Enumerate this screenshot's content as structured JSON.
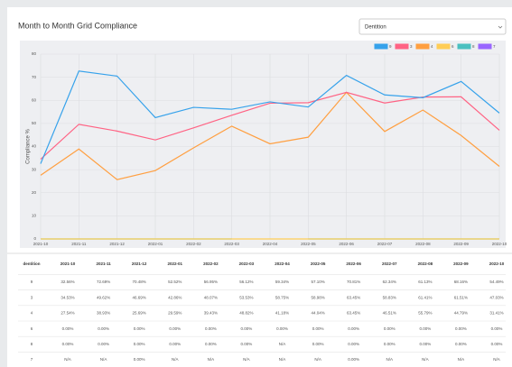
{
  "header": {
    "title": "Month to Month Grid Compliance",
    "dropdown_value": "Dentition"
  },
  "chart_data": {
    "type": "line",
    "y_label": "Compliance %",
    "categories": [
      "2021-10",
      "2021-11",
      "2021-12",
      "2022-01",
      "2022-02",
      "2022-03",
      "2022-04",
      "2022-05",
      "2022-06",
      "2022-07",
      "2022-08",
      "2022-09",
      "2022-10"
    ],
    "ylim": [
      0,
      80
    ],
    "yticks": [
      0,
      10,
      20,
      30,
      40,
      50,
      60,
      70,
      80
    ],
    "grid": true,
    "legend": "top-right",
    "series": [
      {
        "name": "9",
        "color": "#36a2eb",
        "values": [
          32.56,
          72.69,
          70.48,
          52.52,
          56.95,
          56.12,
          59.34,
          57.1,
          70.81,
          62.34,
          61.13,
          68.16,
          54.49
        ]
      },
      {
        "name": "3",
        "color": "#ff6384",
        "values": [
          34.53,
          49.62,
          46.69,
          42.86,
          48.07,
          53.53,
          58.75,
          58.98,
          63.45,
          58.83,
          61.41,
          61.51,
          47.03
        ]
      },
      {
        "name": "4",
        "color": "#ff9f40",
        "values": [
          27.54,
          38.93,
          25.69,
          29.59,
          39.43,
          48.82,
          41.18,
          44.04,
          63.45,
          46.51,
          55.79,
          44.79,
          31.41
        ]
      },
      {
        "name": "6",
        "color": "#ffcd56",
        "values": [
          0,
          0,
          0,
          0,
          0,
          0,
          0,
          0,
          0,
          0,
          0,
          0,
          0
        ]
      },
      {
        "name": "8",
        "color": "#4bc0c0",
        "values": [
          0,
          0,
          0,
          0,
          0,
          0,
          null,
          0,
          0,
          0,
          0,
          0,
          0
        ]
      },
      {
        "name": "7",
        "color": "#9966ff",
        "values": [
          null,
          null,
          0,
          null,
          null,
          null,
          null,
          null,
          0,
          null,
          null,
          null,
          null
        ]
      }
    ]
  },
  "table": {
    "header": "dentition",
    "rows": [
      [
        "9",
        "32.56%",
        "72.69%",
        "70.48%",
        "52.52%",
        "56.95%",
        "56.12%",
        "59.34%",
        "57.10%",
        "70.81%",
        "62.34%",
        "61.13%",
        "68.16%",
        "54.49%"
      ],
      [
        "3",
        "34.53%",
        "49.62%",
        "46.69%",
        "42.86%",
        "48.07%",
        "53.53%",
        "58.75%",
        "58.98%",
        "63.45%",
        "58.83%",
        "61.41%",
        "61.51%",
        "47.03%"
      ],
      [
        "4",
        "27.54%",
        "38.93%",
        "25.69%",
        "29.59%",
        "39.43%",
        "48.82%",
        "41.18%",
        "44.04%",
        "63.45%",
        "46.51%",
        "55.79%",
        "44.79%",
        "31.41%"
      ],
      [
        "6",
        "0.00%",
        "0.00%",
        "0.00%",
        "0.00%",
        "0.00%",
        "0.00%",
        "0.00%",
        "0.00%",
        "0.00%",
        "0.00%",
        "0.00%",
        "0.00%",
        "0.00%"
      ],
      [
        "8",
        "0.00%",
        "0.00%",
        "0.00%",
        "0.00%",
        "0.00%",
        "0.00%",
        "N/A",
        "0.00%",
        "0.00%",
        "0.00%",
        "0.00%",
        "0.00%",
        "0.00%"
      ],
      [
        "7",
        "N/A",
        "N/A",
        "0.00%",
        "N/A",
        "N/A",
        "N/A",
        "N/A",
        "N/A",
        "0.00%",
        "N/A",
        "N/A",
        "N/A",
        "N/A"
      ]
    ]
  }
}
